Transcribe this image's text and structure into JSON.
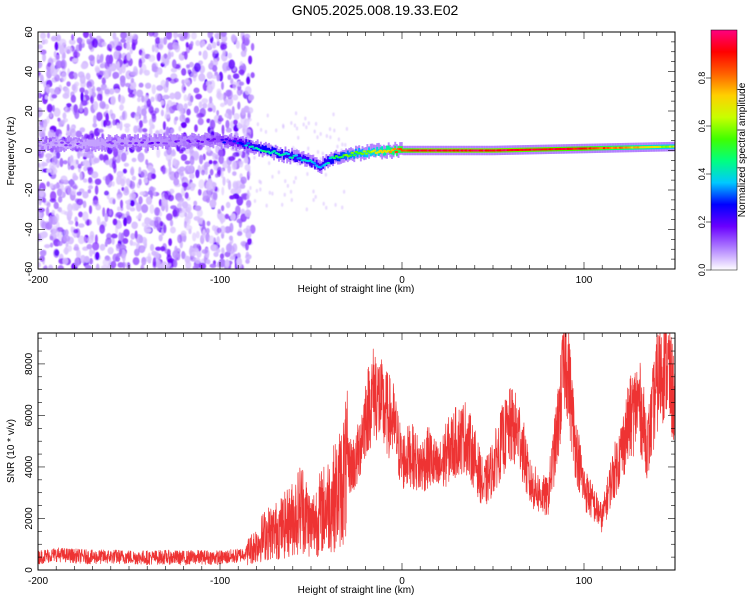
{
  "figure": {
    "title": "GN05.2025.008.19.33.E02"
  },
  "chart_data": [
    {
      "type": "heatmap",
      "xlabel": "Height of straight line (km)",
      "ylabel": "Frequency (Hz)",
      "xlim": [
        -200,
        150
      ],
      "ylim": [
        -60,
        60
      ],
      "xticks": [
        -200,
        -100,
        0,
        100
      ],
      "yticks": [
        -60,
        -40,
        -20,
        0,
        20,
        40,
        60
      ],
      "grid": false,
      "description_of_values": "frequency vs height; scattered low-amplitude purple noise from -200 to about -85 km; a narrow band near 0 Hz that dips to about -10 Hz near -45 km and becomes a high-amplitude (red) flat line from 0 to 150 km",
      "ridge": {
        "x": [
          -200,
          -150,
          -110,
          -95,
          -85,
          -75,
          -65,
          -55,
          -45,
          -38,
          -30,
          -20,
          -10,
          0,
          10,
          50,
          100,
          150
        ],
        "frequency": [
          3,
          4,
          5,
          5,
          3,
          0,
          -2,
          -4,
          -8,
          -4,
          -2,
          -1,
          0,
          0,
          0,
          0,
          1,
          2
        ],
        "amplitude": [
          0.1,
          0.12,
          0.15,
          0.25,
          0.35,
          0.45,
          0.4,
          0.38,
          0.35,
          0.45,
          0.55,
          0.6,
          0.7,
          0.85,
          0.95,
          0.95,
          0.9,
          0.6
        ]
      },
      "colorbar": {
        "label": "Normalized spectral amplitude",
        "range": [
          0.0,
          1.0
        ],
        "ticks": [
          "0.0",
          "0.2",
          "0.4",
          "0.6",
          "0.8"
        ],
        "colors": [
          "#ffffff",
          "#b080ff",
          "#6a00ff",
          "#0000ff",
          "#00c8ff",
          "#00ff80",
          "#40ff00",
          "#c8ff00",
          "#ffd000",
          "#ff6000",
          "#ff0000",
          "#ff0080"
        ]
      }
    },
    {
      "type": "line",
      "xlabel": "Height of straight line (km)",
      "ylabel": "SNR (10 * v/v)",
      "xlim": [
        -200,
        150
      ],
      "ylim": [
        0,
        9200
      ],
      "xticks": [
        -200,
        -100,
        0,
        100
      ],
      "yticks": [
        0,
        2000,
        4000,
        6000,
        8000
      ],
      "grid": false,
      "color": "#ee3333",
      "series": [
        {
          "x": [
            -200,
            -190,
            -180,
            -170,
            -160,
            -150,
            -140,
            -130,
            -120,
            -110,
            -100,
            -90,
            -85,
            -80,
            -75,
            -70,
            -65,
            -60,
            -55,
            -50,
            -45,
            -40,
            -35,
            -30,
            -25,
            -20,
            -15,
            -10,
            -5,
            0,
            5,
            10,
            15,
            20,
            25,
            30,
            35,
            40,
            45,
            50,
            55,
            60,
            65,
            70,
            75,
            80,
            85,
            90,
            95,
            100,
            105,
            110,
            115,
            120,
            125,
            130,
            135,
            140,
            145,
            150
          ],
          "y": [
            500,
            600,
            550,
            500,
            520,
            500,
            480,
            500,
            470,
            500,
            480,
            550,
            700,
            1000,
            1400,
            1500,
            1700,
            2000,
            2500,
            1700,
            2200,
            2600,
            3000,
            4000,
            4200,
            6000,
            7000,
            6200,
            5800,
            4200,
            4500,
            4000,
            4400,
            3800,
            4600,
            5000,
            5200,
            4300,
            3200,
            4000,
            5000,
            5600,
            5200,
            3400,
            3000,
            2800,
            5200,
            8600,
            5000,
            3200,
            2600,
            2000,
            3500,
            4500,
            5800,
            6600,
            4800,
            7200,
            8200,
            6400
          ]
        }
      ]
    }
  ]
}
